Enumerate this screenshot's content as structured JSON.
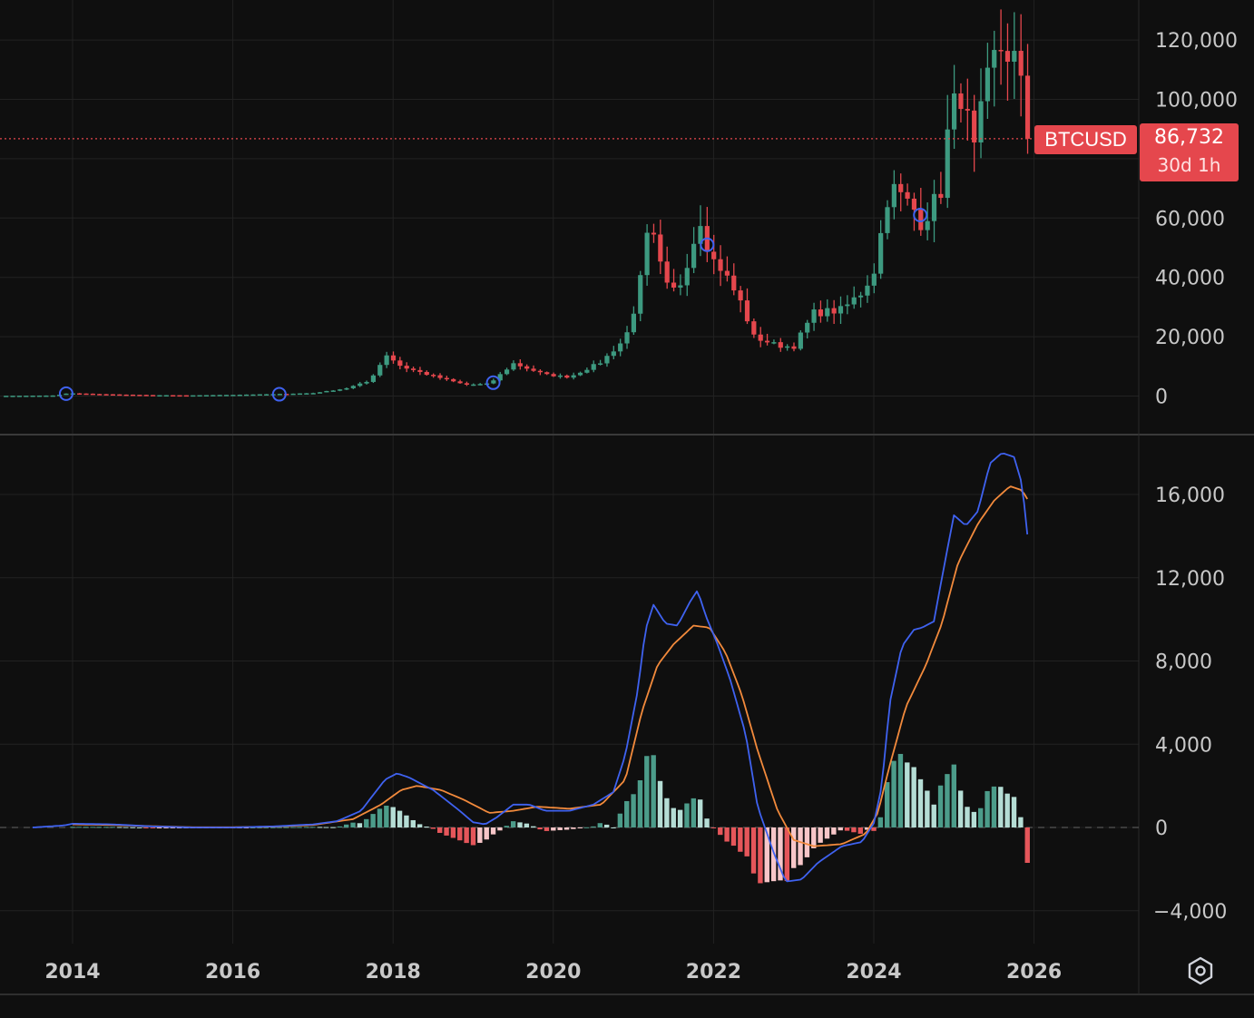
{
  "chart_data": [
    {
      "type": "candlestick",
      "symbol": "BTCUSD",
      "last_price_label": "86,732",
      "countdown": "30d 1h",
      "last_price": 86732,
      "ylim": [
        -10000,
        130000
      ],
      "y_ticks": [
        {
          "value": 0,
          "label": "0"
        },
        {
          "value": 20000,
          "label": "20,000"
        },
        {
          "value": 40000,
          "label": "40,000"
        },
        {
          "value": 60000,
          "label": "60,000"
        },
        {
          "value": 80000,
          "label": ""
        },
        {
          "value": 100000,
          "label": "100,000"
        },
        {
          "value": 120000,
          "label": "120,000"
        }
      ],
      "x_ticks": [
        2014,
        2016,
        2018,
        2020,
        2022,
        2024,
        2026
      ],
      "x_range": [
        2013.1,
        2027.3
      ],
      "colors": {
        "up": "#3d9a80",
        "down": "#e5474d"
      },
      "close_anchors": [
        [
          2013.2,
          100
        ],
        [
          2013.8,
          200
        ],
        [
          2013.9,
          800
        ],
        [
          2014.0,
          900
        ],
        [
          2014.4,
          600
        ],
        [
          2015.0,
          300
        ],
        [
          2015.5,
          250
        ],
        [
          2016.0,
          420
        ],
        [
          2016.5,
          650
        ],
        [
          2017.0,
          1000
        ],
        [
          2017.4,
          2500
        ],
        [
          2017.7,
          5000
        ],
        [
          2017.92,
          14000
        ],
        [
          2018.1,
          10000
        ],
        [
          2018.4,
          7500
        ],
        [
          2018.9,
          3800
        ],
        [
          2019.2,
          4100
        ],
        [
          2019.5,
          11000
        ],
        [
          2019.9,
          7200
        ],
        [
          2020.2,
          6400
        ],
        [
          2020.6,
          11500
        ],
        [
          2020.9,
          19500
        ],
        [
          2021.05,
          33000
        ],
        [
          2021.2,
          58000
        ],
        [
          2021.4,
          37000
        ],
        [
          2021.55,
          35000
        ],
        [
          2021.85,
          61000
        ],
        [
          2021.95,
          47000
        ],
        [
          2022.1,
          43000
        ],
        [
          2022.35,
          31000
        ],
        [
          2022.5,
          20000
        ],
        [
          2022.8,
          17000
        ],
        [
          2023.0,
          16600
        ],
        [
          2023.25,
          28000
        ],
        [
          2023.6,
          29000
        ],
        [
          2023.85,
          35000
        ],
        [
          2024.0,
          42000
        ],
        [
          2024.2,
          71000
        ],
        [
          2024.5,
          63000
        ],
        [
          2024.6,
          58000
        ],
        [
          2024.85,
          70000
        ],
        [
          2024.95,
          96000
        ],
        [
          2025.1,
          102000
        ],
        [
          2025.25,
          82000
        ],
        [
          2025.4,
          104000
        ],
        [
          2025.55,
          118000
        ],
        [
          2025.75,
          114000
        ],
        [
          2025.82,
          109000
        ],
        [
          2025.88,
          91000
        ],
        [
          2025.92,
          86732
        ]
      ],
      "markers": [
        {
          "x": 2013.92,
          "y": 800
        },
        {
          "x": 2016.58,
          "y": 600
        },
        {
          "x": 2019.25,
          "y": 4500
        },
        {
          "x": 2021.92,
          "y": 51000
        },
        {
          "x": 2024.58,
          "y": 61000
        }
      ]
    },
    {
      "type": "macd",
      "ylim": [
        -5500,
        18700
      ],
      "y_ticks": [
        {
          "value": -4000,
          "label": "−4,000"
        },
        {
          "value": 0,
          "label": "0"
        },
        {
          "value": 4000,
          "label": "4,000"
        },
        {
          "value": 8000,
          "label": "8,000"
        },
        {
          "value": 12000,
          "label": "12,000"
        },
        {
          "value": 16000,
          "label": "16,000"
        }
      ],
      "macd_anchors": [
        [
          2013.5,
          0
        ],
        [
          2013.9,
          100
        ],
        [
          2014.0,
          180
        ],
        [
          2014.5,
          150
        ],
        [
          2015.0,
          50
        ],
        [
          2015.5,
          0
        ],
        [
          2016.0,
          0
        ],
        [
          2016.5,
          50
        ],
        [
          2017.0,
          150
        ],
        [
          2017.3,
          300
        ],
        [
          2017.6,
          800
        ],
        [
          2017.9,
          2300
        ],
        [
          2018.05,
          2600
        ],
        [
          2018.2,
          2400
        ],
        [
          2018.5,
          1800
        ],
        [
          2018.8,
          900
        ],
        [
          2019.0,
          250
        ],
        [
          2019.15,
          150
        ],
        [
          2019.3,
          500
        ],
        [
          2019.5,
          1100
        ],
        [
          2019.7,
          1100
        ],
        [
          2019.9,
          800
        ],
        [
          2020.2,
          800
        ],
        [
          2020.5,
          1100
        ],
        [
          2020.75,
          1700
        ],
        [
          2020.9,
          3500
        ],
        [
          2021.05,
          6500
        ],
        [
          2021.15,
          9500
        ],
        [
          2021.25,
          10700
        ],
        [
          2021.4,
          9800
        ],
        [
          2021.55,
          9700
        ],
        [
          2021.7,
          10800
        ],
        [
          2021.8,
          11400
        ],
        [
          2021.9,
          10200
        ],
        [
          2022.05,
          8800
        ],
        [
          2022.2,
          7200
        ],
        [
          2022.4,
          4500
        ],
        [
          2022.55,
          1000
        ],
        [
          2022.75,
          -1200
        ],
        [
          2022.9,
          -2600
        ],
        [
          2023.1,
          -2500
        ],
        [
          2023.3,
          -1700
        ],
        [
          2023.6,
          -900
        ],
        [
          2023.85,
          -700
        ],
        [
          2024.0,
          200
        ],
        [
          2024.1,
          2000
        ],
        [
          2024.2,
          6000
        ],
        [
          2024.35,
          8700
        ],
        [
          2024.5,
          9500
        ],
        [
          2024.6,
          9600
        ],
        [
          2024.75,
          9900
        ],
        [
          2024.85,
          12000
        ],
        [
          2025.0,
          15000
        ],
        [
          2025.15,
          14500
        ],
        [
          2025.3,
          15200
        ],
        [
          2025.45,
          17500
        ],
        [
          2025.6,
          18000
        ],
        [
          2025.75,
          17800
        ],
        [
          2025.85,
          16500
        ],
        [
          2025.93,
          13600
        ]
      ],
      "signal_anchors": [
        [
          2014.0,
          150
        ],
        [
          2014.5,
          120
        ],
        [
          2015.0,
          60
        ],
        [
          2015.5,
          10
        ],
        [
          2016.0,
          10
        ],
        [
          2016.5,
          40
        ],
        [
          2017.0,
          120
        ],
        [
          2017.5,
          400
        ],
        [
          2017.85,
          1100
        ],
        [
          2018.1,
          1800
        ],
        [
          2018.3,
          2000
        ],
        [
          2018.6,
          1800
        ],
        [
          2018.9,
          1300
        ],
        [
          2019.2,
          700
        ],
        [
          2019.5,
          800
        ],
        [
          2019.8,
          1000
        ],
        [
          2020.2,
          900
        ],
        [
          2020.6,
          1100
        ],
        [
          2020.9,
          2300
        ],
        [
          2021.1,
          5500
        ],
        [
          2021.3,
          7800
        ],
        [
          2021.5,
          8800
        ],
        [
          2021.75,
          9700
        ],
        [
          2021.95,
          9600
        ],
        [
          2022.15,
          8400
        ],
        [
          2022.35,
          6400
        ],
        [
          2022.55,
          3700
        ],
        [
          2022.8,
          800
        ],
        [
          2023.0,
          -600
        ],
        [
          2023.25,
          -900
        ],
        [
          2023.6,
          -800
        ],
        [
          2023.9,
          -300
        ],
        [
          2024.05,
          700
        ],
        [
          2024.2,
          3000
        ],
        [
          2024.4,
          5800
        ],
        [
          2024.65,
          7800
        ],
        [
          2024.85,
          9800
        ],
        [
          2025.05,
          12700
        ],
        [
          2025.3,
          14600
        ],
        [
          2025.5,
          15700
        ],
        [
          2025.7,
          16400
        ],
        [
          2025.85,
          16200
        ],
        [
          2025.93,
          15700
        ]
      ],
      "colors": {
        "macd": "#3f62f0",
        "signal": "#f28a3c",
        "hist_pos_strong": "#4c9c8a",
        "hist_pos_weak": "#b5ddd5",
        "hist_neg_strong": "#e5565a",
        "hist_neg_weak": "#f7c6c8"
      }
    }
  ]
}
